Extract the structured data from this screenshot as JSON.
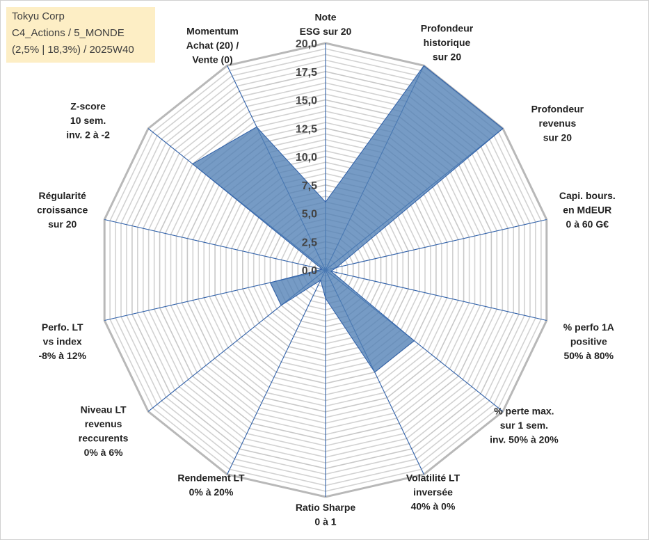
{
  "info": {
    "line1": "Tokyu Corp",
    "line2": "C4_Actions / 5_MONDE",
    "line3": "(2,5% | 18,3%) / 2025W40"
  },
  "chart_data": {
    "type": "radar",
    "rmin": 0,
    "rmax": 20,
    "ticks": [
      0,
      2.5,
      5,
      7.5,
      10,
      12.5,
      15,
      17.5,
      20
    ],
    "tick_labels": [
      "0,0",
      "2,5",
      "5,0",
      "7,5",
      "10,0",
      "12,5",
      "15,0",
      "17,5",
      "20,0"
    ],
    "axes": [
      {
        "label": [
          "Note",
          "ESG sur 20"
        ],
        "value": 6
      },
      {
        "label": [
          "Profondeur",
          "historique",
          "sur 20"
        ],
        "value": 20
      },
      {
        "label": [
          "Profondeur",
          "revenus",
          "sur 20"
        ],
        "value": 20
      },
      {
        "label": [
          "Capi. bours.",
          "en MdEUR",
          "0 à 60 G€"
        ],
        "value": 1
      },
      {
        "label": [
          "% perfo 1A",
          "positive",
          "50% à 80%"
        ],
        "value": 0.5
      },
      {
        "label": [
          "% perte max.",
          "sur 1 sem.",
          "inv. 50% à 20%"
        ],
        "value": 10
      },
      {
        "label": [
          "Volatilité LT",
          "inversée",
          "40% à 0%"
        ],
        "value": 10
      },
      {
        "label": [
          "Ratio Sharpe",
          "0 à 1"
        ],
        "value": 2.5
      },
      {
        "label": [
          "Rendement LT",
          "0% à 20%"
        ],
        "value": 1
      },
      {
        "label": [
          "Niveau LT",
          "revenus",
          "reccurents",
          "0% à 6%"
        ],
        "value": 5
      },
      {
        "label": [
          "Perfo. LT",
          "vs index",
          "-8% à 12%"
        ],
        "value": 5
      },
      {
        "label": [
          "Régularité",
          "croissance",
          "sur 20"
        ],
        "value": 0.3
      },
      {
        "label": [
          "Z-score",
          "10 sem.",
          "inv. 2 à -2"
        ],
        "value": 15
      },
      {
        "label": [
          "Momentum",
          "Achat (20) /",
          "Vente (0)"
        ],
        "value": 14
      }
    ],
    "colors": {
      "fill": "#4f7fb5",
      "grid": "#bfbfbf",
      "spoke": "#2e5fa8"
    }
  }
}
